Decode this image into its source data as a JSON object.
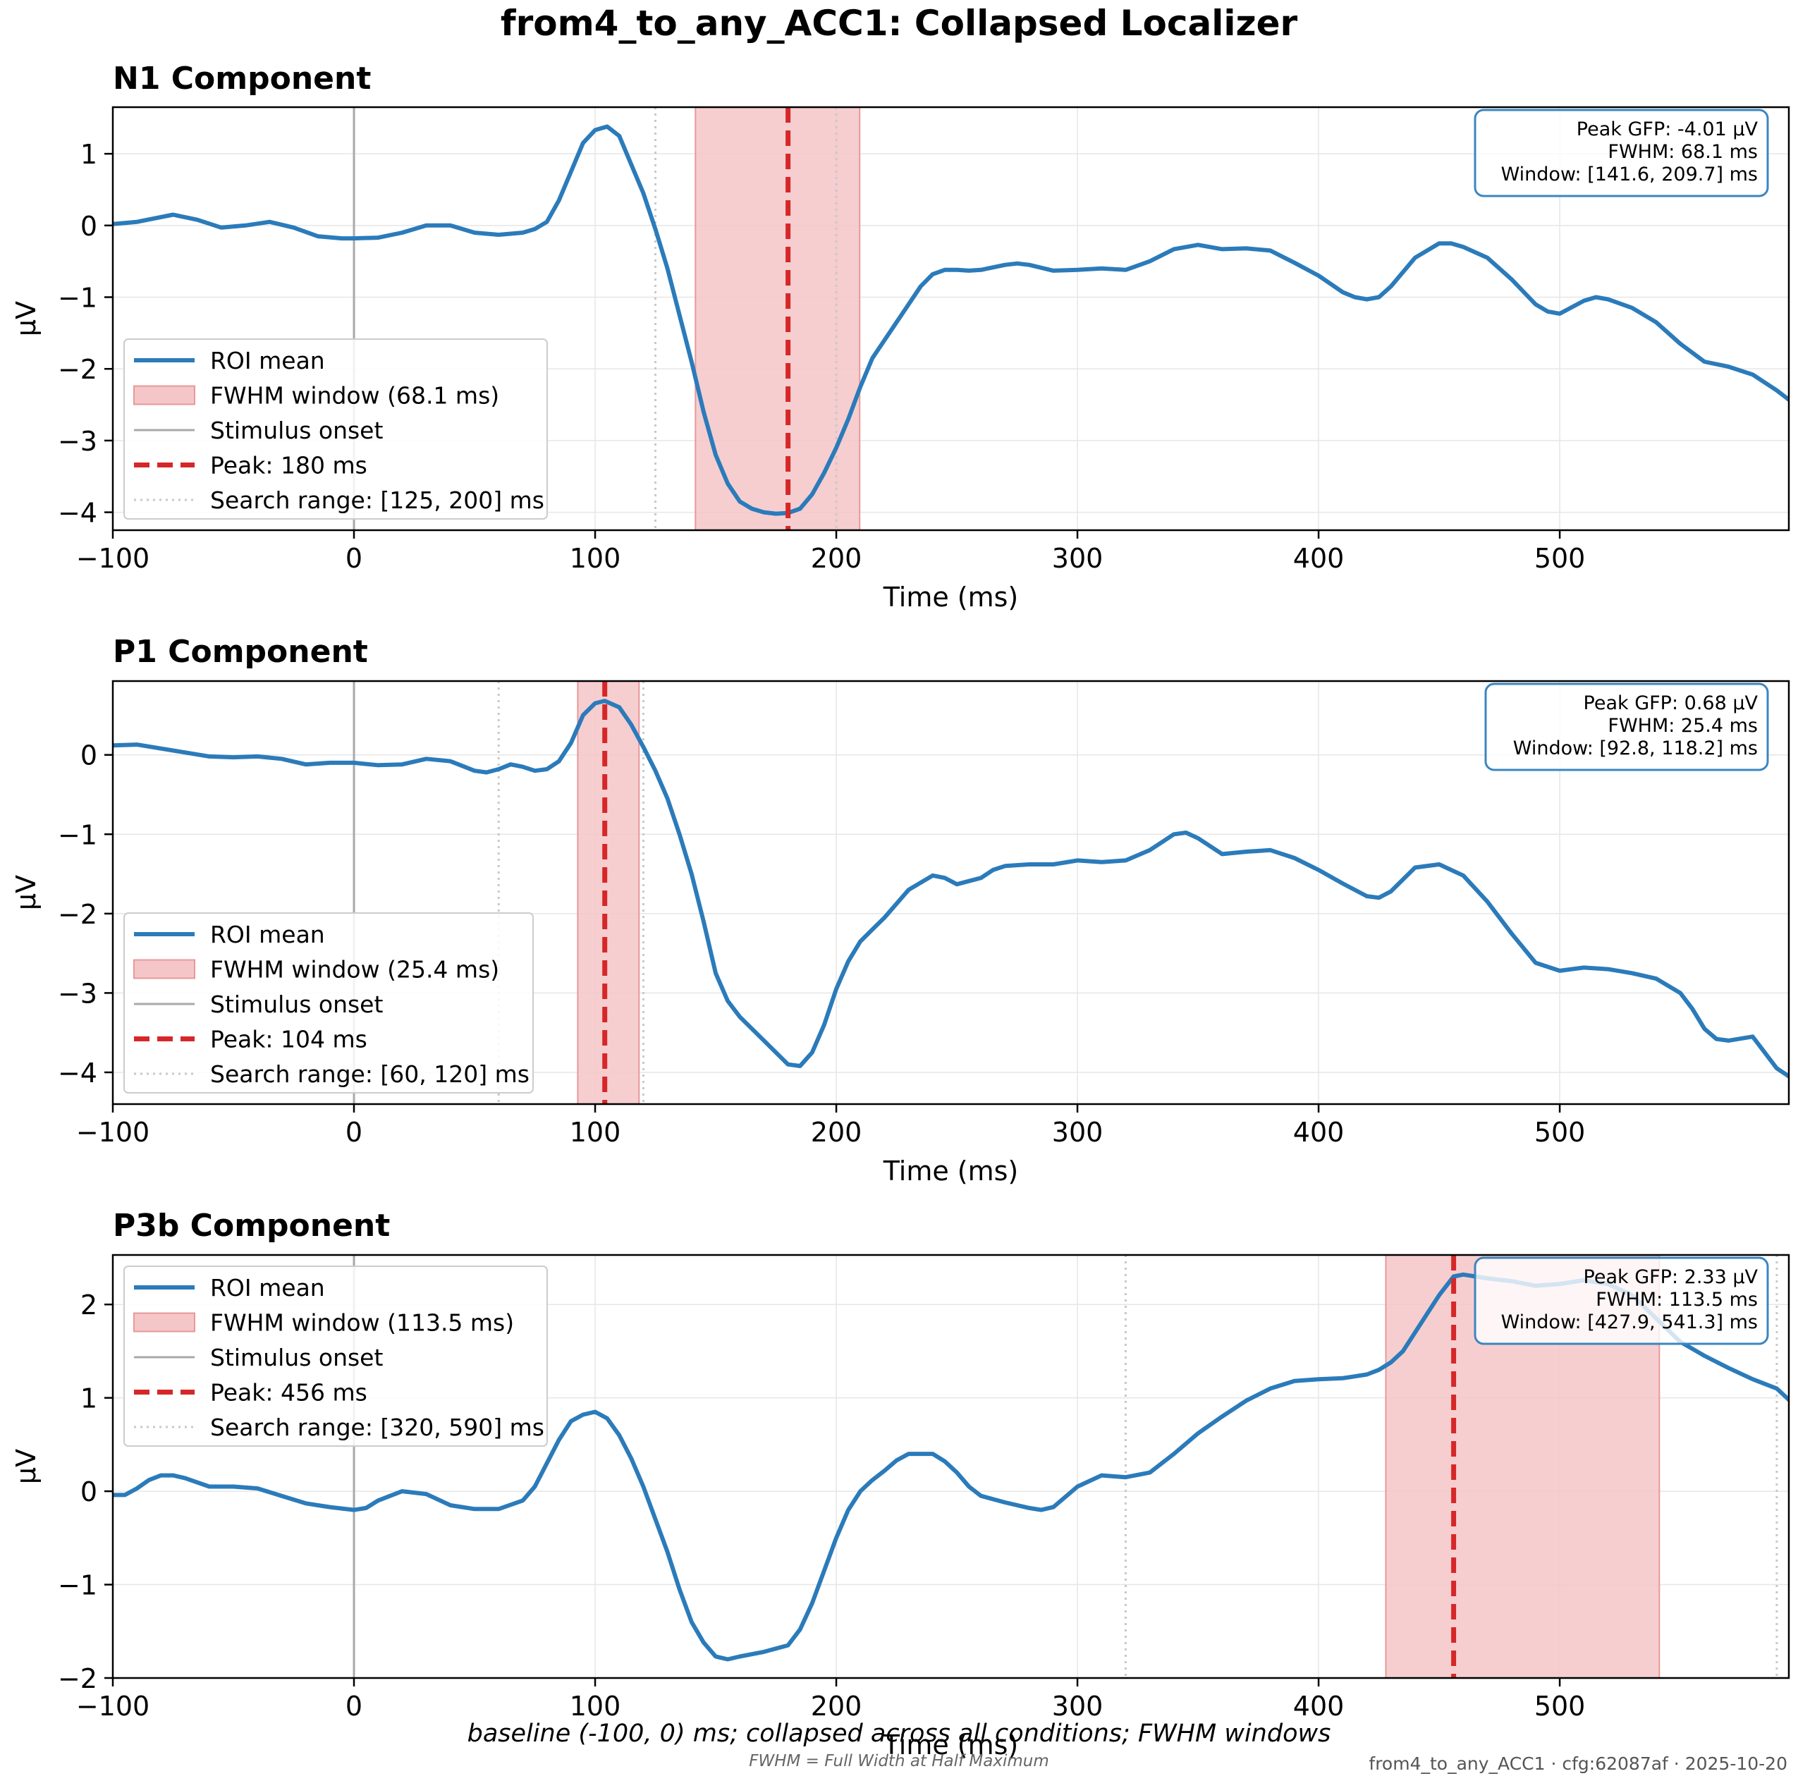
{
  "figure": {
    "title": "from4_to_any_ACC1: Collapsed Localizer",
    "footer_caption": "baseline (-100, 0) ms; collapsed across all conditions; FWHM windows",
    "footer_note": "FWHM = Full Width at Half Maximum",
    "footer_meta": "from4_to_any_ACC1 · cfg:62087af · 2025-10-20"
  },
  "colors": {
    "line": "#2b7bba",
    "peak": "#d62728",
    "fwhm_fill": "#f4c6c8",
    "fwhm_edge": "#e8989a",
    "onset": "#a9a9a9",
    "search": "#c8c8c8",
    "info_border": "#3b86c0",
    "grid": "#e6e6e6"
  },
  "chart_data": [
    {
      "type": "line",
      "title": "N1 Component",
      "xlabel": "Time (ms)",
      "ylabel": "µV",
      "xlim": [
        -100,
        595
      ],
      "ylim": [
        -4.25,
        1.65
      ],
      "xticks": [
        -100,
        0,
        100,
        200,
        300,
        400,
        500
      ],
      "yticks": [
        -4,
        -3,
        -2,
        -1,
        0,
        1
      ],
      "grid": true,
      "legend_position": "lower-left",
      "info_position": "upper-right",
      "peak_ms": 180,
      "fwhm_window": [
        141.6,
        209.7
      ],
      "search_range": [
        125,
        200
      ],
      "stimulus_onset": 0,
      "legend": [
        "ROI mean",
        "FWHM window (68.1 ms)",
        "Stimulus onset",
        "Peak: 180 ms",
        "Search range: [125, 200] ms"
      ],
      "info": [
        "Peak GFP: -4.01 µV",
        "FWHM: 68.1 ms",
        "Window: [141.6, 209.7] ms"
      ],
      "series": [
        {
          "name": "ROI mean",
          "x": [
            -100,
            -90,
            -75,
            -65,
            -55,
            -45,
            -35,
            -25,
            -15,
            -5,
            0,
            10,
            20,
            30,
            40,
            50,
            60,
            70,
            75,
            80,
            85,
            90,
            95,
            100,
            105,
            110,
            115,
            120,
            125,
            130,
            135,
            140,
            145,
            150,
            155,
            160,
            165,
            170,
            175,
            180,
            185,
            190,
            195,
            200,
            205,
            210,
            215,
            220,
            225,
            230,
            235,
            240,
            245,
            250,
            255,
            260,
            270,
            275,
            280,
            290,
            300,
            310,
            320,
            330,
            340,
            350,
            360,
            370,
            380,
            390,
            400,
            410,
            415,
            420,
            425,
            430,
            440,
            450,
            455,
            460,
            470,
            480,
            490,
            495,
            500,
            510,
            515,
            520,
            530,
            540,
            550,
            560,
            570,
            580,
            590,
            595
          ],
          "y": [
            0.02,
            0.05,
            0.15,
            0.08,
            -0.03,
            0.0,
            0.05,
            -0.03,
            -0.15,
            -0.18,
            -0.18,
            -0.17,
            -0.1,
            0.0,
            0.0,
            -0.1,
            -0.13,
            -0.1,
            -0.05,
            0.05,
            0.35,
            0.75,
            1.15,
            1.33,
            1.38,
            1.25,
            0.85,
            0.45,
            -0.05,
            -0.6,
            -1.25,
            -1.9,
            -2.6,
            -3.2,
            -3.6,
            -3.85,
            -3.95,
            -4.0,
            -4.02,
            -4.01,
            -3.95,
            -3.75,
            -3.45,
            -3.1,
            -2.7,
            -2.25,
            -1.85,
            -1.6,
            -1.35,
            -1.1,
            -0.85,
            -0.68,
            -0.62,
            -0.62,
            -0.63,
            -0.62,
            -0.55,
            -0.53,
            -0.55,
            -0.63,
            -0.62,
            -0.6,
            -0.62,
            -0.5,
            -0.33,
            -0.27,
            -0.33,
            -0.32,
            -0.35,
            -0.52,
            -0.7,
            -0.93,
            -1.0,
            -1.03,
            -1.0,
            -0.85,
            -0.45,
            -0.25,
            -0.25,
            -0.3,
            -0.45,
            -0.75,
            -1.1,
            -1.2,
            -1.23,
            -1.05,
            -1.0,
            -1.03,
            -1.15,
            -1.35,
            -1.65,
            -1.9,
            -1.97,
            -2.08,
            -2.3,
            -2.43
          ]
        }
      ]
    },
    {
      "type": "line",
      "title": "P1 Component",
      "xlabel": "Time (ms)",
      "ylabel": "µV",
      "xlim": [
        -100,
        595
      ],
      "ylim": [
        -4.4,
        0.93
      ],
      "xticks": [
        -100,
        0,
        100,
        200,
        300,
        400,
        500
      ],
      "yticks": [
        -4,
        -3,
        -2,
        -1,
        0
      ],
      "grid": true,
      "legend_position": "lower-left",
      "info_position": "upper-right",
      "peak_ms": 104,
      "fwhm_window": [
        92.8,
        118.2
      ],
      "search_range": [
        60,
        120
      ],
      "stimulus_onset": 0,
      "legend": [
        "ROI mean",
        "FWHM window (25.4 ms)",
        "Stimulus onset",
        "Peak: 104 ms",
        "Search range: [60, 120] ms"
      ],
      "info": [
        "Peak GFP: 0.68 µV",
        "FWHM: 25.4 ms",
        "Window: [92.8, 118.2] ms"
      ],
      "series": [
        {
          "name": "ROI mean",
          "x": [
            -100,
            -90,
            -80,
            -70,
            -60,
            -50,
            -40,
            -30,
            -20,
            -10,
            0,
            10,
            20,
            30,
            40,
            50,
            55,
            60,
            65,
            70,
            75,
            80,
            85,
            90,
            95,
            100,
            104,
            110,
            115,
            120,
            125,
            130,
            135,
            140,
            145,
            150,
            155,
            160,
            170,
            180,
            185,
            190,
            195,
            200,
            205,
            210,
            215,
            220,
            230,
            240,
            245,
            250,
            260,
            265,
            270,
            280,
            290,
            300,
            310,
            320,
            330,
            340,
            345,
            350,
            360,
            370,
            380,
            390,
            400,
            410,
            420,
            425,
            430,
            440,
            450,
            460,
            470,
            480,
            490,
            500,
            510,
            520,
            530,
            540,
            550,
            555,
            560,
            565,
            570,
            580,
            590,
            595
          ],
          "y": [
            0.12,
            0.13,
            0.08,
            0.03,
            -0.02,
            -0.03,
            -0.02,
            -0.05,
            -0.12,
            -0.1,
            -0.1,
            -0.13,
            -0.12,
            -0.05,
            -0.08,
            -0.2,
            -0.22,
            -0.18,
            -0.12,
            -0.15,
            -0.2,
            -0.18,
            -0.08,
            0.15,
            0.5,
            0.65,
            0.68,
            0.6,
            0.38,
            0.1,
            -0.2,
            -0.55,
            -1.0,
            -1.5,
            -2.1,
            -2.75,
            -3.1,
            -3.3,
            -3.6,
            -3.9,
            -3.92,
            -3.75,
            -3.4,
            -2.95,
            -2.6,
            -2.35,
            -2.2,
            -2.05,
            -1.7,
            -1.52,
            -1.55,
            -1.63,
            -1.55,
            -1.45,
            -1.4,
            -1.38,
            -1.38,
            -1.33,
            -1.35,
            -1.33,
            -1.2,
            -1.0,
            -0.98,
            -1.05,
            -1.25,
            -1.22,
            -1.2,
            -1.3,
            -1.45,
            -1.62,
            -1.78,
            -1.8,
            -1.72,
            -1.42,
            -1.38,
            -1.52,
            -1.85,
            -2.25,
            -2.62,
            -2.72,
            -2.68,
            -2.7,
            -2.75,
            -2.82,
            -3.0,
            -3.2,
            -3.45,
            -3.58,
            -3.6,
            -3.55,
            -3.95,
            -4.05
          ]
        }
      ]
    },
    {
      "type": "line",
      "title": "P3b Component",
      "xlabel": "Time (ms)",
      "ylabel": "µV",
      "xlim": [
        -100,
        595
      ],
      "ylim": [
        -2.0,
        2.53
      ],
      "xticks": [
        -100,
        0,
        100,
        200,
        300,
        400,
        500
      ],
      "yticks": [
        -2,
        -1,
        0,
        1,
        2
      ],
      "grid": true,
      "legend_position": "upper-left",
      "info_position": "upper-right",
      "peak_ms": 456,
      "fwhm_window": [
        427.9,
        541.3
      ],
      "search_range": [
        320,
        590
      ],
      "stimulus_onset": 0,
      "legend": [
        "ROI mean",
        "FWHM window (113.5 ms)",
        "Stimulus onset",
        "Peak: 456 ms",
        "Search range: [320, 590] ms"
      ],
      "info": [
        "Peak GFP: 2.33 µV",
        "FWHM: 113.5 ms",
        "Window: [427.9, 541.3] ms"
      ],
      "series": [
        {
          "name": "ROI mean",
          "x": [
            -100,
            -95,
            -90,
            -85,
            -80,
            -75,
            -70,
            -60,
            -50,
            -40,
            -30,
            -20,
            -10,
            0,
            5,
            10,
            20,
            30,
            40,
            50,
            60,
            70,
            75,
            80,
            85,
            90,
            95,
            100,
            105,
            110,
            115,
            120,
            125,
            130,
            135,
            140,
            145,
            150,
            155,
            160,
            170,
            180,
            185,
            190,
            195,
            200,
            205,
            210,
            215,
            220,
            225,
            230,
            240,
            245,
            250,
            255,
            260,
            270,
            280,
            285,
            290,
            300,
            310,
            320,
            330,
            340,
            350,
            360,
            370,
            380,
            390,
            400,
            410,
            415,
            420,
            425,
            430,
            435,
            440,
            445,
            450,
            456,
            460,
            470,
            480,
            490,
            500,
            510,
            520,
            530,
            540,
            550,
            560,
            570,
            580,
            590,
            595
          ],
          "y": [
            -0.04,
            -0.04,
            0.03,
            0.12,
            0.17,
            0.17,
            0.14,
            0.05,
            0.05,
            0.03,
            -0.05,
            -0.13,
            -0.17,
            -0.2,
            -0.18,
            -0.1,
            0.0,
            -0.03,
            -0.15,
            -0.19,
            -0.19,
            -0.1,
            0.05,
            0.3,
            0.55,
            0.75,
            0.82,
            0.85,
            0.78,
            0.6,
            0.35,
            0.05,
            -0.3,
            -0.65,
            -1.05,
            -1.4,
            -1.62,
            -1.77,
            -1.8,
            -1.77,
            -1.72,
            -1.65,
            -1.48,
            -1.2,
            -0.85,
            -0.5,
            -0.2,
            0.0,
            0.12,
            0.22,
            0.33,
            0.4,
            0.4,
            0.32,
            0.2,
            0.05,
            -0.05,
            -0.12,
            -0.18,
            -0.2,
            -0.17,
            0.05,
            0.17,
            0.15,
            0.2,
            0.4,
            0.62,
            0.8,
            0.97,
            1.1,
            1.18,
            1.2,
            1.21,
            1.23,
            1.25,
            1.3,
            1.38,
            1.5,
            1.7,
            1.9,
            2.1,
            2.3,
            2.32,
            2.28,
            2.25,
            2.2,
            2.22,
            2.26,
            2.22,
            2.1,
            1.85,
            1.6,
            1.45,
            1.32,
            1.2,
            1.1,
            0.98
          ]
        }
      ]
    }
  ]
}
